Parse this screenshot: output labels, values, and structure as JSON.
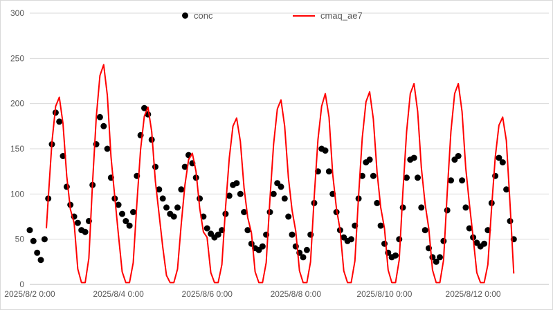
{
  "legend": {
    "items": [
      {
        "label": "conc",
        "marker": "dot",
        "color": "#000000"
      },
      {
        "label": "cmaq_ae7",
        "marker": "line",
        "color": "#FF0000"
      }
    ]
  },
  "colors": {
    "grid": "#D9D9D9",
    "axis_line": "#BFBFBF",
    "tick_text": "#595959",
    "background": "#FFFFFF",
    "border": "#D9D9D9"
  },
  "chart_data": {
    "type": "line+scatter",
    "title": "",
    "xlabel": "",
    "ylabel": "",
    "ylim": [
      0,
      300
    ],
    "ytick_step": 50,
    "xlim": [
      0,
      281
    ],
    "x_unit": "hours since 2025/8/2 0:00",
    "grid": true,
    "legend_position": "top",
    "xticks": [
      {
        "t": 0,
        "label": "2025/8/2 0:00"
      },
      {
        "t": 48,
        "label": "2025/8/4 0:00"
      },
      {
        "t": 96,
        "label": "2025/8/6 0:00"
      },
      {
        "t": 144,
        "label": "2025/8/8 0:00"
      },
      {
        "t": 192,
        "label": "2025/8/10 0:00"
      },
      {
        "t": 240,
        "label": "2025/8/12 0:00"
      }
    ],
    "series": [
      {
        "name": "conc",
        "type": "scatter",
        "color": "#000000",
        "marker_radius": 4.5,
        "points": [
          [
            0,
            60
          ],
          [
            2,
            48
          ],
          [
            4,
            35
          ],
          [
            6,
            27
          ],
          [
            8,
            50
          ],
          [
            10,
            95
          ],
          [
            12,
            155
          ],
          [
            14,
            190
          ],
          [
            16,
            180
          ],
          [
            18,
            142
          ],
          [
            20,
            108
          ],
          [
            22,
            88
          ],
          [
            24,
            75
          ],
          [
            26,
            68
          ],
          [
            28,
            60
          ],
          [
            30,
            58
          ],
          [
            32,
            70
          ],
          [
            34,
            110
          ],
          [
            36,
            155
          ],
          [
            38,
            185
          ],
          [
            40,
            175
          ],
          [
            42,
            150
          ],
          [
            44,
            118
          ],
          [
            46,
            95
          ],
          [
            48,
            88
          ],
          [
            50,
            78
          ],
          [
            52,
            70
          ],
          [
            54,
            65
          ],
          [
            56,
            80
          ],
          [
            58,
            120
          ],
          [
            60,
            165
          ],
          [
            62,
            195
          ],
          [
            64,
            188
          ],
          [
            66,
            160
          ],
          [
            68,
            130
          ],
          [
            70,
            105
          ],
          [
            72,
            95
          ],
          [
            74,
            85
          ],
          [
            76,
            78
          ],
          [
            78,
            75
          ],
          [
            80,
            85
          ],
          [
            82,
            105
          ],
          [
            84,
            130
          ],
          [
            86,
            143
          ],
          [
            88,
            134
          ],
          [
            90,
            118
          ],
          [
            92,
            95
          ],
          [
            94,
            75
          ],
          [
            96,
            62
          ],
          [
            98,
            56
          ],
          [
            100,
            52
          ],
          [
            102,
            55
          ],
          [
            104,
            60
          ],
          [
            106,
            78
          ],
          [
            108,
            98
          ],
          [
            110,
            110
          ],
          [
            112,
            112
          ],
          [
            114,
            100
          ],
          [
            116,
            80
          ],
          [
            118,
            60
          ],
          [
            120,
            45
          ],
          [
            122,
            40
          ],
          [
            124,
            38
          ],
          [
            126,
            42
          ],
          [
            128,
            55
          ],
          [
            130,
            80
          ],
          [
            132,
            100
          ],
          [
            134,
            112
          ],
          [
            136,
            108
          ],
          [
            138,
            95
          ],
          [
            140,
            75
          ],
          [
            142,
            55
          ],
          [
            144,
            42
          ],
          [
            146,
            35
          ],
          [
            148,
            30
          ],
          [
            150,
            38
          ],
          [
            152,
            55
          ],
          [
            154,
            90
          ],
          [
            156,
            125
          ],
          [
            158,
            150
          ],
          [
            160,
            148
          ],
          [
            162,
            125
          ],
          [
            164,
            100
          ],
          [
            166,
            80
          ],
          [
            168,
            60
          ],
          [
            170,
            52
          ],
          [
            172,
            48
          ],
          [
            174,
            50
          ],
          [
            176,
            65
          ],
          [
            178,
            95
          ],
          [
            180,
            120
          ],
          [
            182,
            135
          ],
          [
            184,
            138
          ],
          [
            186,
            120
          ],
          [
            188,
            90
          ],
          [
            190,
            65
          ],
          [
            192,
            45
          ],
          [
            194,
            35
          ],
          [
            196,
            30
          ],
          [
            198,
            32
          ],
          [
            200,
            50
          ],
          [
            202,
            85
          ],
          [
            204,
            118
          ],
          [
            206,
            138
          ],
          [
            208,
            140
          ],
          [
            210,
            118
          ],
          [
            212,
            85
          ],
          [
            214,
            60
          ],
          [
            216,
            40
          ],
          [
            218,
            30
          ],
          [
            220,
            25
          ],
          [
            222,
            30
          ],
          [
            224,
            48
          ],
          [
            226,
            82
          ],
          [
            228,
            115
          ],
          [
            230,
            138
          ],
          [
            232,
            142
          ],
          [
            234,
            115
          ],
          [
            236,
            85
          ],
          [
            238,
            62
          ],
          [
            240,
            52
          ],
          [
            242,
            46
          ],
          [
            244,
            42
          ],
          [
            246,
            45
          ],
          [
            248,
            60
          ],
          [
            250,
            90
          ],
          [
            252,
            120
          ],
          [
            254,
            140
          ],
          [
            256,
            135
          ],
          [
            258,
            105
          ],
          [
            260,
            70
          ],
          [
            262,
            50
          ]
        ]
      },
      {
        "name": "cmaq_ae7",
        "type": "line",
        "color": "#FF0000",
        "stroke_width": 2,
        "points": [
          [
            9,
            62
          ],
          [
            10,
            95
          ],
          [
            12,
            157
          ],
          [
            14,
            197
          ],
          [
            16,
            207
          ],
          [
            18,
            178
          ],
          [
            20,
            120
          ],
          [
            22,
            83
          ],
          [
            24,
            68
          ],
          [
            26,
            17
          ],
          [
            28,
            2
          ],
          [
            30,
            2
          ],
          [
            32,
            29
          ],
          [
            34,
            112
          ],
          [
            36,
            185
          ],
          [
            38,
            231
          ],
          [
            40,
            243
          ],
          [
            42,
            209
          ],
          [
            44,
            141
          ],
          [
            46,
            97
          ],
          [
            48,
            55
          ],
          [
            50,
            14
          ],
          [
            52,
            2
          ],
          [
            54,
            2
          ],
          [
            56,
            24
          ],
          [
            58,
            90
          ],
          [
            60,
            149
          ],
          [
            62,
            186
          ],
          [
            64,
            196
          ],
          [
            66,
            169
          ],
          [
            68,
            114
          ],
          [
            70,
            78
          ],
          [
            72,
            41
          ],
          [
            74,
            10
          ],
          [
            76,
            2
          ],
          [
            78,
            2
          ],
          [
            80,
            17
          ],
          [
            82,
            67
          ],
          [
            84,
            110
          ],
          [
            86,
            138
          ],
          [
            88,
            145
          ],
          [
            90,
            125
          ],
          [
            92,
            84
          ],
          [
            94,
            58
          ],
          [
            96,
            52
          ],
          [
            98,
            13
          ],
          [
            100,
            2
          ],
          [
            102,
            2
          ],
          [
            104,
            22
          ],
          [
            106,
            85
          ],
          [
            108,
            140
          ],
          [
            110,
            175
          ],
          [
            112,
            184
          ],
          [
            114,
            158
          ],
          [
            116,
            107
          ],
          [
            118,
            74
          ],
          [
            120,
            57
          ],
          [
            122,
            14
          ],
          [
            124,
            2
          ],
          [
            126,
            2
          ],
          [
            128,
            24
          ],
          [
            130,
            94
          ],
          [
            132,
            155
          ],
          [
            134,
            194
          ],
          [
            136,
            204
          ],
          [
            138,
            175
          ],
          [
            140,
            118
          ],
          [
            142,
            82
          ],
          [
            144,
            59
          ],
          [
            146,
            15
          ],
          [
            148,
            2
          ],
          [
            150,
            2
          ],
          [
            152,
            25
          ],
          [
            154,
            97
          ],
          [
            156,
            160
          ],
          [
            158,
            197
          ],
          [
            160,
            211
          ],
          [
            162,
            185
          ],
          [
            164,
            122
          ],
          [
            166,
            84
          ],
          [
            168,
            60
          ],
          [
            170,
            15
          ],
          [
            172,
            2
          ],
          [
            174,
            2
          ],
          [
            176,
            26
          ],
          [
            178,
            98
          ],
          [
            180,
            162
          ],
          [
            182,
            202
          ],
          [
            184,
            213
          ],
          [
            186,
            183
          ],
          [
            188,
            124
          ],
          [
            190,
            85
          ],
          [
            192,
            62
          ],
          [
            194,
            16
          ],
          [
            196,
            2
          ],
          [
            198,
            2
          ],
          [
            200,
            27
          ],
          [
            202,
            102
          ],
          [
            204,
            169
          ],
          [
            206,
            211
          ],
          [
            208,
            222
          ],
          [
            210,
            191
          ],
          [
            212,
            129
          ],
          [
            214,
            89
          ],
          [
            216,
            62
          ],
          [
            218,
            16
          ],
          [
            220,
            2
          ],
          [
            222,
            2
          ],
          [
            224,
            27
          ],
          [
            226,
            102
          ],
          [
            228,
            169
          ],
          [
            230,
            211
          ],
          [
            232,
            222
          ],
          [
            234,
            191
          ],
          [
            236,
            129
          ],
          [
            238,
            89
          ],
          [
            240,
            52
          ],
          [
            242,
            13
          ],
          [
            244,
            2
          ],
          [
            246,
            2
          ],
          [
            248,
            22
          ],
          [
            250,
            85
          ],
          [
            252,
            141
          ],
          [
            254,
            176
          ],
          [
            256,
            185
          ],
          [
            258,
            159
          ],
          [
            260,
            88
          ],
          [
            262,
            12
          ]
        ]
      }
    ]
  }
}
